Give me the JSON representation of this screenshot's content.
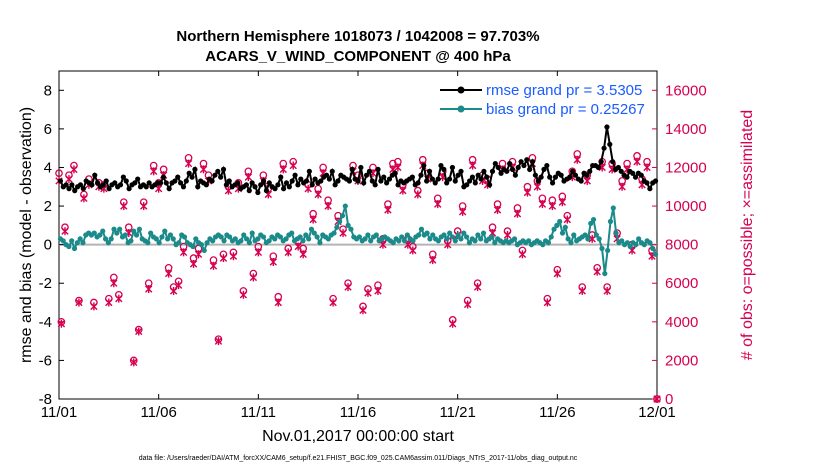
{
  "chart_data": {
    "type": "line",
    "title_line1": "Northern Hemisphere 1018073 / 1042008 = 97.703%",
    "title_line2": "ACARS_V_WIND_COMPONENT @ 400 hPa",
    "xlabel": "Nov.01,2017 00:00:00 start",
    "ylabel_left": "rmse and bias (model - observation)",
    "ylabel_right": "# of obs: o=possible; ×=assimilated",
    "footnote": "data file: /Users/raeder/DAI/ATM_forcXX/CAM6_setup/f.e21.FHIST_BGC.f09_025.CAM6assim.011/Diags_NTrS_2017-11/obs_diag_output.nc",
    "xlim": [
      0,
      30
    ],
    "ylim_left": [
      -8,
      9
    ],
    "ylim_right": [
      0,
      17000
    ],
    "x_ticks": [
      0,
      5,
      10,
      15,
      20,
      25,
      30
    ],
    "x_tick_labels": [
      "11/01",
      "11/06",
      "11/11",
      "11/16",
      "11/21",
      "11/26",
      "12/01"
    ],
    "y_ticks_left": [
      8,
      6,
      4,
      2,
      0,
      -2,
      -4,
      -6,
      -8
    ],
    "y_tick_labels_left": [
      "8",
      "6",
      "4",
      "2",
      "0",
      "-2",
      "-4",
      "-6",
      "-8"
    ],
    "y_ticks_right": [
      16000,
      14000,
      12000,
      10000,
      8000,
      6000,
      4000,
      2000,
      0
    ],
    "y_tick_labels_right": [
      "16000",
      "14000",
      "12000",
      "10000",
      "8000",
      "6000",
      "4000",
      "2000",
      "0"
    ],
    "zero_line": 0,
    "series": [
      {
        "name": "rmse",
        "legend_label": "rmse grand pr = 3.5305",
        "color": "#000000",
        "values": [
          3.3,
          3.0,
          3.1,
          2.9,
          3.1,
          2.8,
          3.0,
          3.1,
          2.9,
          3.3,
          3.2,
          3.1,
          3.6,
          3.2,
          3.0,
          3.1,
          3.3,
          2.9,
          3.1,
          3.2,
          3.0,
          3.1,
          3.5,
          3.3,
          2.9,
          3.1,
          3.2,
          3.4,
          3.0,
          3.1,
          3.0,
          3.2,
          3.0,
          3.1,
          3.2,
          3.2,
          3.5,
          3.2,
          2.9,
          3.2,
          3.3,
          3.5,
          3.2,
          3.0,
          3.3,
          3.7,
          3.5,
          3.9,
          3.0,
          3.3,
          3.2,
          3.1,
          3.4,
          3.3,
          3.6,
          3.8,
          3.5,
          3.9,
          3.1,
          3.3,
          3.0,
          3.1,
          3.2,
          2.9,
          3.0,
          3.1,
          2.8,
          3.2,
          3.0,
          2.7,
          3.1,
          3.3,
          2.8,
          3.2,
          3.0,
          2.9,
          3.1,
          3.5,
          2.9,
          3.2,
          3.0,
          3.3,
          3.6,
          3.1,
          3.4,
          3.2,
          3.3,
          3.8,
          3.1,
          3.4,
          3.2,
          3.3,
          3.5,
          3.6,
          3.4,
          3.8,
          3.1,
          3.3,
          3.6,
          3.5,
          3.4,
          3.3,
          3.9,
          3.4,
          3.3,
          4.0,
          3.2,
          3.6,
          3.8,
          3.3,
          3.1,
          3.9,
          3.3,
          3.5,
          3.2,
          3.4,
          3.6,
          3.7,
          3.1,
          3.3,
          3.2,
          3.3,
          3.4,
          3.5,
          3.1,
          3.2,
          3.6,
          4.1,
          3.3,
          3.8,
          3.4,
          3.2,
          3.4,
          4.1,
          3.9,
          3.2,
          3.4,
          4.0,
          3.3,
          3.6,
          3.8,
          3.0,
          3.1,
          3.3,
          3.5,
          3.2,
          3.6,
          3.4,
          3.8,
          3.5,
          3.1,
          3.8,
          4.2,
          4.0,
          3.7,
          3.9,
          3.8,
          4.2,
          3.9,
          3.6,
          4.0,
          4.3,
          4.1,
          4.4,
          3.9,
          4.3,
          3.6,
          3.3,
          3.5,
          3.9,
          4.1,
          3.5,
          3.2,
          3.5,
          3.7,
          3.6,
          3.3,
          3.4,
          3.5,
          3.8,
          3.6,
          3.4,
          3.3,
          3.7,
          3.6,
          3.8,
          4.1,
          4.1,
          4.0,
          4.3,
          5.0,
          6.1,
          5.2,
          4.3,
          3.9,
          4.0,
          3.8,
          3.6,
          3.5,
          3.8,
          3.7,
          3.5,
          3.7,
          3.6,
          3.3,
          3.2,
          2.9,
          3.2,
          3.3
        ]
      },
      {
        "name": "bias",
        "legend_label": "bias grand pr = 0.25267",
        "color": "#1a8a8a",
        "values": [
          0.3,
          0.2,
          0.0,
          -0.1,
          0.2,
          -0.2,
          0.1,
          0.3,
          0.1,
          0.5,
          0.6,
          0.5,
          0.6,
          0.4,
          0.5,
          0.7,
          0.3,
          0.1,
          0.3,
          0.8,
          0.6,
          0.8,
          0.4,
          0.5,
          0.1,
          0.2,
          0.7,
          0.5,
          0.8,
          0.3,
          0.2,
          0.1,
          0.6,
          0.4,
          0.3,
          0.1,
          0.4,
          0.7,
          0.3,
          0.5,
          0.3,
          0.0,
          0.1,
          0.5,
          0.4,
          0.1,
          0.0,
          -0.1,
          0.3,
          0.1,
          0.0,
          -0.3,
          0.1,
          0.3,
          0.2,
          0.4,
          0.5,
          0.4,
          0.2,
          0.5,
          0.4,
          0.2,
          0.3,
          0.1,
          0.2,
          0.5,
          0.3,
          0.1,
          0.6,
          0.2,
          0.3,
          0.5,
          0.4,
          0.1,
          0.2,
          0.4,
          0.3,
          0.5,
          0.4,
          0.2,
          0.3,
          0.5,
          0.6,
          0.2,
          0.3,
          0.4,
          0.2,
          0.5,
          0.3,
          0.8,
          0.6,
          0.4,
          0.1,
          0.5,
          0.4,
          0.3,
          0.5,
          0.6,
          0.9,
          1.2,
          1.5,
          2.0,
          1.0,
          0.8,
          0.4,
          0.3,
          0.4,
          0.2,
          0.3,
          0.5,
          0.2,
          0.4,
          0.5,
          0.2,
          0.3,
          0.4,
          0.3,
          0.2,
          0.1,
          0.3,
          0.2,
          0.4,
          0.2,
          0.5,
          0.3,
          0.2,
          0.4,
          0.5,
          0.8,
          0.5,
          0.6,
          0.3,
          0.5,
          0.3,
          0.2,
          0.4,
          0.5,
          0.3,
          0.6,
          0.4,
          0.2,
          0.5,
          0.3,
          0.6,
          0.4,
          0.1,
          0.3,
          0.2,
          0.5,
          0.3,
          0.6,
          0.2,
          0.3,
          0.4,
          0.1,
          0.3,
          0.2,
          0.1,
          0.2,
          0.1,
          0.2,
          0.3,
          0.0,
          0.1,
          0.2,
          0.1,
          0.2,
          0.0,
          0.1,
          0.2,
          0.1,
          0.0,
          0.2,
          0.1,
          0.4,
          0.8,
          1.0,
          1.2,
          0.6,
          0.9,
          0.3,
          0.1,
          0.5,
          0.2,
          0.3,
          0.4,
          0.5,
          0.3,
          1.1,
          1.3,
          0.5,
          0.3,
          -0.2,
          -1.5,
          -0.3,
          1.2,
          1.9,
          0.6,
          0.1,
          0.2,
          0.0,
          0.1,
          -0.1,
          0.1,
          0.0,
          0.3,
          0.1,
          0.0,
          0.2,
          0.1,
          -0.2,
          -0.5
        ]
      }
    ],
    "obs_counts": {
      "name": "# of obs",
      "color": "#d6004f",
      "x": [
        0.0,
        0.12,
        0.3,
        0.5,
        0.75,
        1.0,
        1.25,
        1.5,
        1.75,
        2.0,
        2.25,
        2.5,
        2.75,
        3.0,
        3.25,
        3.5,
        3.75,
        4.0,
        4.25,
        4.5,
        4.75,
        5.0,
        5.25,
        5.5,
        5.75,
        6.0,
        6.25,
        6.5,
        6.75,
        7.0,
        7.25,
        7.5,
        7.75,
        8.0,
        8.25,
        8.5,
        8.75,
        9.0,
        9.25,
        9.5,
        9.75,
        10.0,
        10.25,
        10.5,
        10.75,
        11.0,
        11.25,
        11.5,
        11.75,
        12.0,
        12.25,
        12.5,
        12.75,
        13.0,
        13.25,
        13.5,
        13.75,
        14.0,
        14.25,
        14.5,
        14.75,
        15.0,
        15.25,
        15.5,
        15.75,
        16.0,
        16.25,
        16.5,
        16.75,
        17.0,
        17.25,
        17.5,
        17.75,
        18.0,
        18.25,
        18.5,
        18.75,
        19.0,
        19.25,
        19.5,
        19.75,
        20.0,
        20.25,
        20.5,
        20.75,
        21.0,
        21.25,
        21.5,
        21.75,
        22.0,
        22.25,
        22.5,
        22.75,
        23.0,
        23.25,
        23.5,
        23.75,
        24.0,
        24.25,
        24.5,
        24.75,
        25.0,
        25.25,
        25.5,
        25.75,
        26.0,
        26.25,
        26.5,
        26.75,
        27.0,
        27.25,
        27.5,
        27.75,
        28.0,
        28.25,
        28.5,
        28.75,
        29.0,
        29.25,
        29.5,
        29.75,
        30.0
      ],
      "possible": [
        11700,
        4000,
        8900,
        11600,
        12100,
        5100,
        10600,
        11400,
        5000,
        11200,
        11100,
        5200,
        6300,
        5400,
        10200,
        8900,
        2000,
        3600,
        10200,
        6000,
        12100,
        11200,
        11900,
        6800,
        5800,
        6100,
        7900,
        12500,
        7300,
        7800,
        12200,
        11600,
        7200,
        3100,
        7500,
        11000,
        7600,
        11200,
        5600,
        11800,
        6500,
        7900,
        11600,
        10900,
        7400,
        5300,
        12200,
        7800,
        12300,
        8200,
        7800,
        11100,
        9600,
        10900,
        12000,
        10300,
        5200,
        9500,
        8800,
        6000,
        12100,
        11600,
        4800,
        5700,
        12000,
        5900,
        8300,
        10100,
        12200,
        12300,
        11100,
        8300,
        7900,
        10800,
        12400,
        11700,
        7500,
        10400,
        11800,
        8200,
        4100,
        8700,
        10000,
        5100,
        12400,
        6000,
        11600,
        11400,
        8900,
        10100,
        12200,
        8700,
        12300,
        9900,
        7700,
        11000,
        12500,
        11300,
        10400,
        5200,
        10300,
        6700,
        10500,
        9500,
        11800,
        12700,
        5800,
        11600,
        8500,
        6800,
        12300,
        5800,
        12200,
        8600,
        11300,
        12200,
        8000,
        12600,
        11400,
        12300,
        7700,
        0
      ],
      "assimilated": [
        11300,
        3900,
        8700,
        11400,
        11900,
        5000,
        10400,
        11100,
        4800,
        11000,
        10900,
        5000,
        6000,
        5200,
        10000,
        8600,
        1900,
        3500,
        10000,
        5700,
        11800,
        10900,
        11600,
        6500,
        5600,
        5900,
        7600,
        12200,
        7000,
        7500,
        11900,
        11300,
        6900,
        3000,
        7300,
        10800,
        7400,
        10900,
        5400,
        11500,
        6300,
        7600,
        11300,
        10600,
        7100,
        5000,
        11900,
        7600,
        12100,
        7900,
        7500,
        10900,
        9300,
        10600,
        11700,
        10000,
        5000,
        9200,
        8600,
        5800,
        11800,
        11300,
        4600,
        5500,
        11700,
        5600,
        8000,
        9800,
        11900,
        12000,
        10800,
        8000,
        7700,
        10600,
        12100,
        11400,
        7200,
        10100,
        11500,
        8000,
        3900,
        8500,
        9700,
        4900,
        12100,
        5800,
        11300,
        11100,
        8600,
        9800,
        11900,
        8500,
        12000,
        9600,
        7500,
        10700,
        12200,
        11000,
        10100,
        5000,
        10000,
        6500,
        10200,
        9300,
        11500,
        12400,
        5600,
        11300,
        8300,
        6600,
        12000,
        5600,
        11900,
        8300,
        11000,
        11900,
        7700,
        12300,
        11100,
        12000,
        7400,
        0
      ]
    }
  }
}
